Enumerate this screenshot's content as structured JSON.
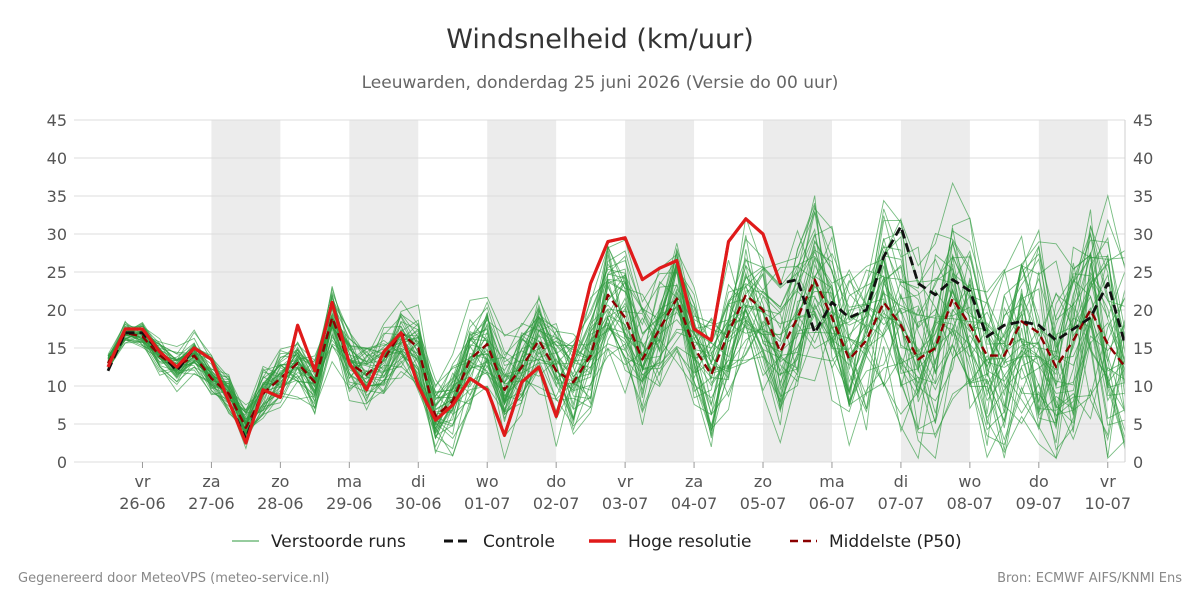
{
  "header": {
    "title": "Windsnelheid (km/uur)",
    "subtitle": "Leeuwarden, donderdag 25 juni 2026 (Versie do 00 uur)"
  },
  "footer": {
    "left": "Gegenereerd door MeteoVPS (meteo-service.nl)",
    "right": "Bron: ECMWF AIFS/KNMI Ens"
  },
  "chart_data": {
    "type": "line",
    "title": "Windsnelheid (km/uur)",
    "subtitle": "Leeuwarden, donderdag 25 juni 2026 (Versie do 00 uur)",
    "ylim": [
      0,
      45
    ],
    "yticks": [
      0,
      5,
      10,
      15,
      20,
      25,
      30,
      35,
      40,
      45
    ],
    "grid": true,
    "legend_position": "bottom",
    "x_start": "25-06 12:00",
    "x_step_hours": 6,
    "x_ticks": [
      {
        "day": "vr",
        "date": "26-06"
      },
      {
        "day": "za",
        "date": "27-06"
      },
      {
        "day": "zo",
        "date": "28-06"
      },
      {
        "day": "ma",
        "date": "29-06"
      },
      {
        "day": "di",
        "date": "30-06"
      },
      {
        "day": "wo",
        "date": "01-07"
      },
      {
        "day": "do",
        "date": "02-07"
      },
      {
        "day": "vr",
        "date": "03-07"
      },
      {
        "day": "za",
        "date": "04-07"
      },
      {
        "day": "zo",
        "date": "05-07"
      },
      {
        "day": "ma",
        "date": "06-07"
      },
      {
        "day": "di",
        "date": "07-07"
      },
      {
        "day": "wo",
        "date": "08-07"
      },
      {
        "day": "do",
        "date": "09-07"
      },
      {
        "day": "vr",
        "date": "10-07"
      }
    ],
    "shaded_days": [
      "27-06",
      "29-06",
      "01-07",
      "03-07",
      "05-07",
      "07-07",
      "09-07"
    ],
    "colors": {
      "members": "#2e9a3e",
      "control": "#111111",
      "high_res": "#e01a1a",
      "median": "#8b0000",
      "shade": "#ececec",
      "grid": "#dddddd"
    },
    "series": [
      {
        "name": "Hoge resolutie",
        "values": [
          12.5,
          17.5,
          17.5,
          14.5,
          12.5,
          15,
          13.5,
          8,
          2.5,
          9.5,
          8.5,
          18,
          12,
          21,
          13,
          9.5,
          14.5,
          17,
          10,
          5.5,
          7.5,
          11,
          9.5,
          3.5,
          10.5,
          12.5,
          6,
          14,
          23.5,
          29,
          29.5,
          24,
          25.5,
          26.5,
          17.5,
          16,
          29,
          32,
          30,
          23.5
        ]
      },
      {
        "name": "Controle",
        "values": [
          12,
          17,
          17,
          14.5,
          12,
          15,
          13.5,
          8,
          3,
          9.5,
          8.5,
          18,
          12,
          21,
          13,
          9.5,
          14.5,
          17,
          10,
          5.5,
          7.5,
          11,
          9.5,
          3.5,
          10.5,
          12.5,
          6,
          14,
          23.5,
          29,
          29.5,
          24,
          25.5,
          26.5,
          17.5,
          16,
          29,
          32,
          30,
          23.5,
          24,
          17,
          21,
          19,
          20,
          27,
          31,
          23.5,
          22,
          24,
          22.5,
          16.5,
          18,
          18.5,
          18,
          16,
          17.5,
          19,
          23.5,
          15.5
        ]
      },
      {
        "name": "Middelste (P50)",
        "values": [
          13,
          17,
          16.5,
          14,
          12.5,
          14,
          11,
          9,
          4.5,
          9,
          11,
          13,
          10.5,
          19,
          13,
          11.5,
          13.5,
          17,
          15,
          6,
          8,
          13.5,
          15.5,
          9.5,
          12.5,
          16,
          12,
          10.5,
          14,
          22,
          19,
          13.5,
          17.5,
          21.5,
          15,
          11.5,
          17,
          22,
          20,
          14.5,
          19,
          24,
          19,
          13.5,
          16,
          21,
          18,
          13.5,
          15,
          21.5,
          18,
          14,
          14,
          18.5,
          17,
          12.5,
          16,
          20,
          15.5,
          12.5
        ]
      },
      {
        "name": "Verstoorde runs",
        "values": []
      }
    ]
  }
}
